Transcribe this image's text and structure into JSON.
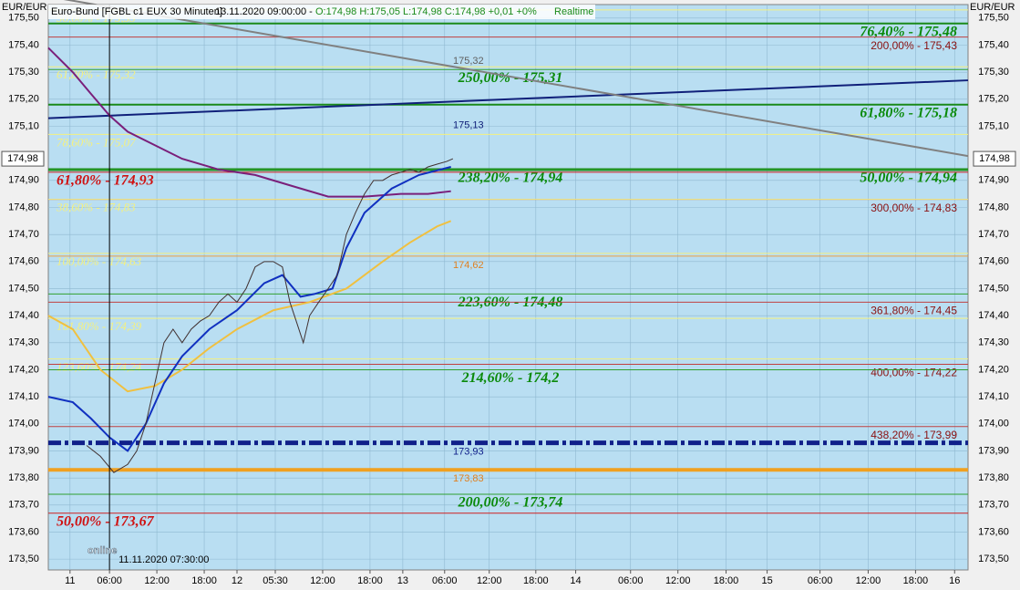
{
  "chart_data": {
    "type": "line",
    "title": "Euro-Bund [FGBL c1 EUX 30 Minuten]",
    "subtitle": "13.11.2020 09:00:00 -",
    "quote": "O:174,98 H:175,05 L:174,98 C:174,98 +0,01 +0%",
    "status": "Realtime",
    "y_axis_label": "EUR/EUR",
    "last_price": {
      "value": 174.98,
      "label": "174,98"
    },
    "cursor_label": "11.11.2020 07:30:00",
    "logo": "online",
    "cursor_x": 15.5,
    "grid": true,
    "xlim": [
      0,
      233
    ],
    "ylim": [
      173.46,
      175.55
    ],
    "xticks": [
      {
        "value": 5.5,
        "label": "11"
      },
      {
        "value": 15.5,
        "label": "06:00"
      },
      {
        "value": 27.5,
        "label": "12:00"
      },
      {
        "value": 39.5,
        "label": "18:00"
      },
      {
        "value": 47.8,
        "label": "12"
      },
      {
        "value": 57.5,
        "label": "05:30"
      },
      {
        "value": 69.5,
        "label": "12:00"
      },
      {
        "value": 81.5,
        "label": "18:00"
      },
      {
        "value": 89.8,
        "label": "13"
      },
      {
        "value": 100.4,
        "label": "06:00"
      },
      {
        "value": 111.7,
        "label": "12:00"
      },
      {
        "value": 123.5,
        "label": "18:00"
      },
      {
        "value": 133.6,
        "label": "14"
      },
      {
        "value": 147.5,
        "label": "06:00"
      },
      {
        "value": 159.5,
        "label": "12:00"
      },
      {
        "value": 171.7,
        "label": "18:00"
      },
      {
        "value": 182.1,
        "label": "15"
      },
      {
        "value": 195.5,
        "label": "06:00"
      },
      {
        "value": 207.7,
        "label": "12:00"
      },
      {
        "value": 219.7,
        "label": "18:00"
      },
      {
        "value": 229.6,
        "label": "16"
      }
    ],
    "yticks": [
      {
        "value": 175.5,
        "label": "175,50"
      },
      {
        "value": 175.4,
        "label": "175,40"
      },
      {
        "value": 175.3,
        "label": "175,30"
      },
      {
        "value": 175.2,
        "label": "175,20"
      },
      {
        "value": 175.1,
        "label": "175,10"
      },
      {
        "value": 174.9,
        "label": "174,90"
      },
      {
        "value": 174.8,
        "label": "174,80"
      },
      {
        "value": 174.7,
        "label": "174,70"
      },
      {
        "value": 174.6,
        "label": "174,60"
      },
      {
        "value": 174.5,
        "label": "174,50"
      },
      {
        "value": 174.4,
        "label": "174,40"
      },
      {
        "value": 174.3,
        "label": "174,30"
      },
      {
        "value": 174.2,
        "label": "174,20"
      },
      {
        "value": 174.1,
        "label": "174,10"
      },
      {
        "value": 174.0,
        "label": "174,00"
      },
      {
        "value": 173.9,
        "label": "173,90"
      },
      {
        "value": 173.8,
        "label": "173,80"
      },
      {
        "value": 173.7,
        "label": "173,70"
      },
      {
        "value": 173.6,
        "label": "173,60"
      },
      {
        "value": 173.5,
        "label": "173,50"
      }
    ],
    "series": [
      {
        "color": "#7a1f7a",
        "width": 2,
        "x": [
          0,
          6.2,
          10.8,
          15.5,
          20.1,
          27,
          33.9,
          43.2,
          52.4,
          61.6,
          70.9,
          80.1,
          89.3,
          96.2,
          102.0
        ],
        "values": [
          175.39,
          175.3,
          175.22,
          175.14,
          175.08,
          175.03,
          174.98,
          174.94,
          174.92,
          174.88,
          174.84,
          174.84,
          174.85,
          174.85,
          174.86
        ]
      },
      {
        "color": "#f0c040",
        "width": 2,
        "x": [
          0,
          6.2,
          13.2,
          20.1,
          27,
          33.9,
          40.8,
          47.8,
          57,
          66.2,
          75.5,
          84.7,
          91.6,
          98.5,
          102.0
        ],
        "values": [
          174.4,
          174.35,
          174.2,
          174.12,
          174.14,
          174.2,
          174.28,
          174.35,
          174.42,
          174.45,
          174.5,
          174.6,
          174.67,
          174.73,
          174.75
        ]
      },
      {
        "color": "#1030c0",
        "width": 2,
        "x": [
          0,
          6.2,
          10.8,
          15.5,
          20.1,
          24.7,
          29.3,
          33.9,
          40.8,
          47.8,
          54.7,
          59.3,
          63.9,
          67.4,
          72.0,
          75.5,
          80.1,
          87,
          93.9,
          102.0
        ],
        "values": [
          174.1,
          174.08,
          174.02,
          173.95,
          173.9,
          174.0,
          174.15,
          174.25,
          174.35,
          174.42,
          174.52,
          174.55,
          174.47,
          174.48,
          174.5,
          174.65,
          174.78,
          174.87,
          174.92,
          174.95
        ]
      },
      {
        "color": "#403030",
        "width": 1,
        "x": [
          9.7,
          13.2,
          16.6,
          20.1,
          22.4,
          24.7,
          27,
          29.3,
          31.6,
          33.9,
          36.2,
          38.5,
          40.8,
          43.2,
          45.5,
          47.8,
          50.1,
          52.4,
          54.7,
          57,
          59.3,
          61.2,
          62.8,
          64.6,
          66.2,
          68.5,
          70.9,
          73.2,
          75.5,
          77.8,
          80.1,
          82.4,
          84.7,
          87,
          89.3,
          91.6,
          93.9,
          96.2,
          98.5,
          100.9,
          102.5
        ],
        "values": [
          173.92,
          173.88,
          173.82,
          173.85,
          173.9,
          174.0,
          174.15,
          174.3,
          174.35,
          174.3,
          174.35,
          174.38,
          174.4,
          174.45,
          174.48,
          174.45,
          174.5,
          174.58,
          174.6,
          174.6,
          174.58,
          174.45,
          174.38,
          174.3,
          174.4,
          174.45,
          174.5,
          174.55,
          174.7,
          174.78,
          174.85,
          174.9,
          174.9,
          174.92,
          174.93,
          174.94,
          174.93,
          174.95,
          174.96,
          174.97,
          174.98
        ]
      }
    ],
    "trendlines": [
      {
        "color": "#10207a",
        "x": [
          0,
          233
        ],
        "values": [
          175.13,
          175.27
        ],
        "label": "175,13"
      },
      {
        "color": "#808080",
        "x": [
          0,
          233
        ],
        "values": [
          175.58,
          174.99
        ],
        "label": "175,32"
      }
    ],
    "levels": [
      {
        "value": 175.53,
        "color": "#f4f080",
        "width": 1,
        "label": "50,00% - 175,53",
        "side": "left",
        "style": "faint"
      },
      {
        "value": 175.48,
        "color": "#1a8a1a",
        "width": 2,
        "label": "76,40% - 175,48",
        "side": "right",
        "style": "green"
      },
      {
        "value": 175.43,
        "color": "#c04040",
        "width": 1,
        "label": "200,00% - 175,43",
        "side": "right",
        "style": "red"
      },
      {
        "value": 175.32,
        "color": "#f4f080",
        "width": 1,
        "label": "61,80% - 175,32",
        "side": "left",
        "style": "faint"
      },
      {
        "value": 175.31,
        "color": "#30a030",
        "width": 1,
        "label": "250,00% - 175,31",
        "side": "center",
        "style": "green"
      },
      {
        "value": 175.18,
        "color": "#1a8a1a",
        "width": 2,
        "label": "61,80% - 175,18",
        "side": "right",
        "style": "green"
      },
      {
        "value": 175.07,
        "color": "#f4f080",
        "width": 1,
        "label": "78,60% - 175,07",
        "side": "left",
        "style": "faint"
      },
      {
        "value": 174.94,
        "color": "#1a8a1a",
        "width": 3,
        "label": "50,00% - 174,94",
        "side": "right",
        "style": "green"
      },
      {
        "value": 174.94,
        "color": "#30a030",
        "width": 1,
        "label": "238,20% - 174,94",
        "side": "center",
        "style": "green"
      },
      {
        "value": 174.93,
        "color": "#d02020",
        "width": 1,
        "label": "61,80% - 174,93",
        "side": "left",
        "style": "bold-red"
      },
      {
        "value": 174.83,
        "color": "#c04040",
        "width": 1,
        "label": "300,00% - 174,83",
        "side": "right",
        "style": "red"
      },
      {
        "value": 174.83,
        "color": "#f4f080",
        "width": 1,
        "label": "38,60% - 174,83",
        "side": "left",
        "style": "faint"
      },
      {
        "value": 174.63,
        "color": "#f4f080",
        "width": 1,
        "label": "100,00% - 174,63",
        "side": "left",
        "style": "faint"
      },
      {
        "value": 174.62,
        "color": "#f0a040",
        "width": 1,
        "label": "174,62",
        "side": "mid",
        "style": "orange"
      },
      {
        "value": 174.48,
        "color": "#30a030",
        "width": 1,
        "label": "223,60% - 174,48",
        "side": "center",
        "style": "green"
      },
      {
        "value": 174.45,
        "color": "#c04040",
        "width": 1,
        "label": "361,80% - 174,45",
        "side": "right",
        "style": "red"
      },
      {
        "value": 174.39,
        "color": "#f4f080",
        "width": 1,
        "label": "161,80% - 174,39",
        "side": "left",
        "style": "faint"
      },
      {
        "value": 174.24,
        "color": "#f4f080",
        "width": 1,
        "label": "123,60% - 174,24",
        "side": "left",
        "style": "faint"
      },
      {
        "value": 174.22,
        "color": "#c04040",
        "width": 1,
        "label": "400,00% - 174,22",
        "side": "right",
        "style": "red"
      },
      {
        "value": 174.2,
        "color": "#30a030",
        "width": 1,
        "label": "214,60% - 174,2",
        "side": "center",
        "style": "green"
      },
      {
        "value": 173.99,
        "color": "#c04040",
        "width": 1,
        "label": "438,20% - 173,99",
        "side": "right",
        "style": "red"
      },
      {
        "value": 173.93,
        "color": "#10208a",
        "width": 5,
        "label": "173,93",
        "side": "mid",
        "style": "navy",
        "dash": true
      },
      {
        "value": 173.83,
        "color": "#f0a020",
        "width": 4,
        "label": "173,83",
        "side": "mid",
        "style": "orange"
      },
      {
        "value": 173.74,
        "color": "#30a030",
        "width": 1,
        "label": "200,00% - 173,74",
        "side": "center",
        "style": "green"
      },
      {
        "value": 173.67,
        "color": "#d02020",
        "width": 1,
        "label": "50,00% - 173,67",
        "side": "left",
        "style": "bold-red"
      }
    ]
  }
}
